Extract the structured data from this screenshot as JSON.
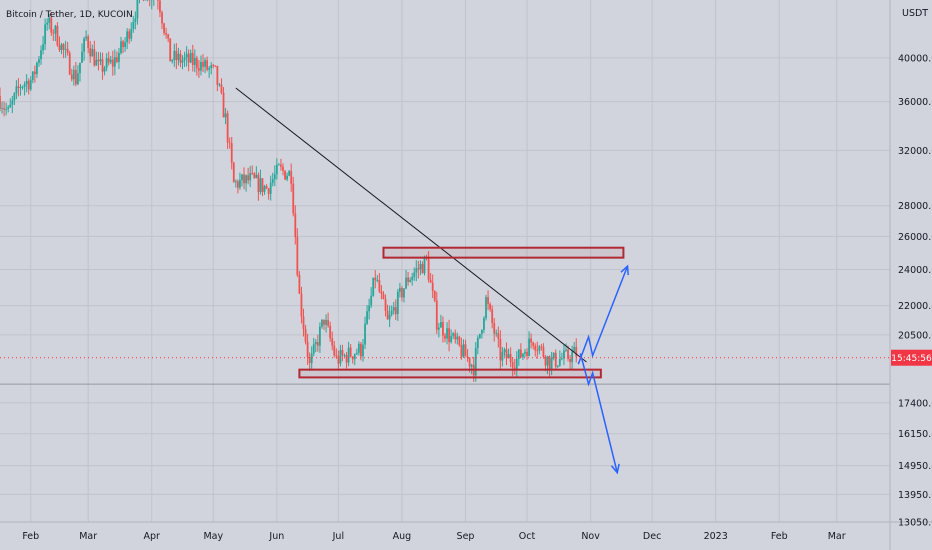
{
  "chart_data": {
    "type": "candlestick",
    "title": "Bitcoin / Tether, 1D, KUCOIN",
    "currency_label": "USDT",
    "y_scale": "log",
    "ylim": [
      13050,
      46000
    ],
    "xlim": [
      "2022-01-17",
      "2023-03-27"
    ],
    "y_ticks": [
      40000,
      36000,
      32000,
      28000,
      26000,
      24000,
      22000,
      20500,
      17400,
      16150,
      14950,
      13950,
      13050
    ],
    "y_tick_labels": [
      "40000.0",
      "36000.0",
      "32000.0",
      "28000.0",
      "26000.0",
      "24000.0",
      "22000.0",
      "20500.0",
      "17400.0",
      "16150.0",
      "14950.0",
      "13950.0",
      "13050.0"
    ],
    "x_ticks": [
      "2022-02-01",
      "2022-03-01",
      "2022-04-01",
      "2022-05-01",
      "2022-06-01",
      "2022-07-01",
      "2022-08-01",
      "2022-09-01",
      "2022-10-01",
      "2022-11-01",
      "2022-12-01",
      "2023-01-01",
      "2023-02-01",
      "2023-03-01"
    ],
    "x_tick_labels": [
      "Feb",
      "Mar",
      "Apr",
      "May",
      "Jun",
      "Jul",
      "Aug",
      "Sep",
      "Oct",
      "Nov",
      "Dec",
      "2023",
      "Feb",
      "Mar"
    ],
    "price_marker": {
      "value": 19400,
      "label": "15:45:56",
      "color": "#f23645"
    },
    "colors": {
      "up": "#26a69a",
      "down": "#ef5350",
      "zone": "#b22833",
      "projection": "#2962ff",
      "trendline": "#131722"
    },
    "anchors": [
      {
        "date": "2022-01-17",
        "price": 36500
      },
      {
        "date": "2022-01-22",
        "price": 35000
      },
      {
        "date": "2022-01-28",
        "price": 37500
      },
      {
        "date": "2022-02-03",
        "price": 38000
      },
      {
        "date": "2022-02-10",
        "price": 43500
      },
      {
        "date": "2022-02-14",
        "price": 42500
      },
      {
        "date": "2022-02-24",
        "price": 38000
      },
      {
        "date": "2022-03-01",
        "price": 42000
      },
      {
        "date": "2022-03-07",
        "price": 39000
      },
      {
        "date": "2022-03-14",
        "price": 39500
      },
      {
        "date": "2022-03-20",
        "price": 41500
      },
      {
        "date": "2022-03-28",
        "price": 47000
      },
      {
        "date": "2022-04-05",
        "price": 46500
      },
      {
        "date": "2022-04-11",
        "price": 40000
      },
      {
        "date": "2022-04-25",
        "price": 39500
      },
      {
        "date": "2022-05-03",
        "price": 38500
      },
      {
        "date": "2022-05-08",
        "price": 34500
      },
      {
        "date": "2022-05-12",
        "price": 29500
      },
      {
        "date": "2022-05-20",
        "price": 29800
      },
      {
        "date": "2022-05-28",
        "price": 29200
      },
      {
        "date": "2022-06-03",
        "price": 30500
      },
      {
        "date": "2022-06-09",
        "price": 30200
      },
      {
        "date": "2022-06-13",
        "price": 22500
      },
      {
        "date": "2022-06-18",
        "price": 19000
      },
      {
        "date": "2022-06-25",
        "price": 21300
      },
      {
        "date": "2022-07-01",
        "price": 19300
      },
      {
        "date": "2022-07-13",
        "price": 19800
      },
      {
        "date": "2022-07-20",
        "price": 23600
      },
      {
        "date": "2022-07-26",
        "price": 21100
      },
      {
        "date": "2022-08-05",
        "price": 23500
      },
      {
        "date": "2022-08-14",
        "price": 24500
      },
      {
        "date": "2022-08-19",
        "price": 21200
      },
      {
        "date": "2022-08-28",
        "price": 20100
      },
      {
        "date": "2022-09-06",
        "price": 19000
      },
      {
        "date": "2022-09-12",
        "price": 22300
      },
      {
        "date": "2022-09-19",
        "price": 19500
      },
      {
        "date": "2022-09-27",
        "price": 19300
      },
      {
        "date": "2022-10-05",
        "price": 20300
      },
      {
        "date": "2022-10-13",
        "price": 19200
      },
      {
        "date": "2022-10-21",
        "price": 19400
      },
      {
        "date": "2022-10-25",
        "price": 19600
      }
    ],
    "annotations": {
      "trendline": [
        {
          "date": "2022-05-12",
          "price": 37200
        },
        {
          "date": "2022-10-30",
          "price": 19200
        }
      ],
      "resistance_zone": {
        "x0": "2022-07-23",
        "x1": "2022-11-17",
        "y_low": 24700,
        "y_high": 25300
      },
      "support_zone": {
        "x0": "2022-06-12",
        "x1": "2022-11-06",
        "y_low": 18500,
        "y_high": 18850
      },
      "bullish_path": [
        {
          "date": "2022-10-26",
          "price": 19100
        },
        {
          "date": "2022-10-31",
          "price": 20400
        },
        {
          "date": "2022-11-02",
          "price": 19500
        },
        {
          "date": "2022-11-19",
          "price": 24200
        }
      ],
      "bearish_path": [
        {
          "date": "2022-10-27",
          "price": 19600
        },
        {
          "date": "2022-10-31",
          "price": 18200
        },
        {
          "date": "2022-11-02",
          "price": 18700
        },
        {
          "date": "2022-11-14",
          "price": 14700
        }
      ]
    }
  }
}
